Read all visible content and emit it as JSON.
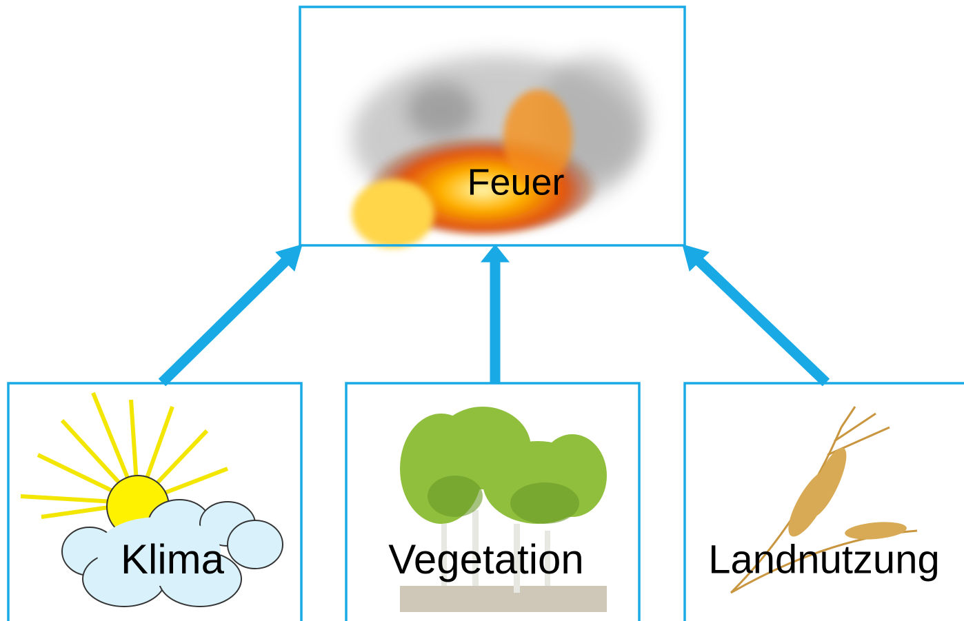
{
  "nodes": [
    {
      "label": "Feuer"
    },
    {
      "label": "Klima"
    },
    {
      "label": "Vegetation"
    },
    {
      "label": "Landnutzung"
    }
  ]
}
